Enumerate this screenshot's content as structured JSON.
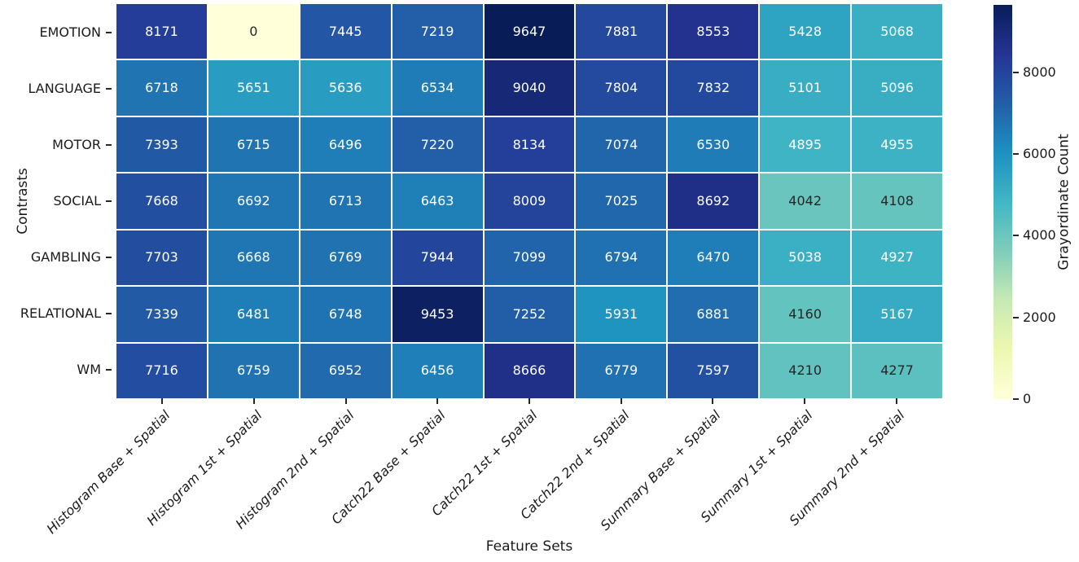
{
  "chart_data": {
    "type": "heatmap",
    "xlabel": "Feature Sets",
    "ylabel": "Contrasts",
    "colorbar_label": "Grayordinate Count",
    "colorbar_ticks": [
      0,
      2000,
      4000,
      6000,
      8000
    ],
    "vmin": 0,
    "vmax": 9647,
    "colormap": "YlGnBu",
    "colormap_stops": [
      "#ffffd9",
      "#edf8b1",
      "#c7e9b4",
      "#7fcdbb",
      "#41b6c4",
      "#1d91c0",
      "#225ea8",
      "#253494",
      "#081d58"
    ],
    "annotation_text_colors": {
      "dark": "#262626",
      "light": "#ffffff"
    },
    "rows": [
      "EMOTION",
      "LANGUAGE",
      "MOTOR",
      "SOCIAL",
      "GAMBLING",
      "RELATIONAL",
      "WM"
    ],
    "columns": [
      "Histogram Base + Spatial",
      "Histogram 1st + Spatial",
      "Histogram 2nd + Spatial",
      "Catch22 Base + Spatial",
      "Catch22 1st + Spatial",
      "Catch22 2nd + Spatial",
      "Summary Base + Spatial",
      "Summary 1st + Spatial",
      "Summary 2nd + Spatial"
    ],
    "values": [
      [
        8171,
        0,
        7445,
        7219,
        9647,
        7881,
        8553,
        5428,
        5068
      ],
      [
        6718,
        5651,
        5636,
        6534,
        9040,
        7804,
        7832,
        5101,
        5096
      ],
      [
        7393,
        6715,
        6496,
        7220,
        8134,
        7074,
        6530,
        4895,
        4955
      ],
      [
        7668,
        6692,
        6713,
        6463,
        8009,
        7025,
        8692,
        4042,
        4108
      ],
      [
        7703,
        6668,
        6769,
        7944,
        7099,
        6794,
        6470,
        5038,
        4927
      ],
      [
        7339,
        6481,
        6748,
        9453,
        7252,
        5931,
        6881,
        4160,
        5167
      ],
      [
        7716,
        6759,
        6952,
        6456,
        8666,
        6779,
        7597,
        4210,
        4277
      ]
    ]
  }
}
